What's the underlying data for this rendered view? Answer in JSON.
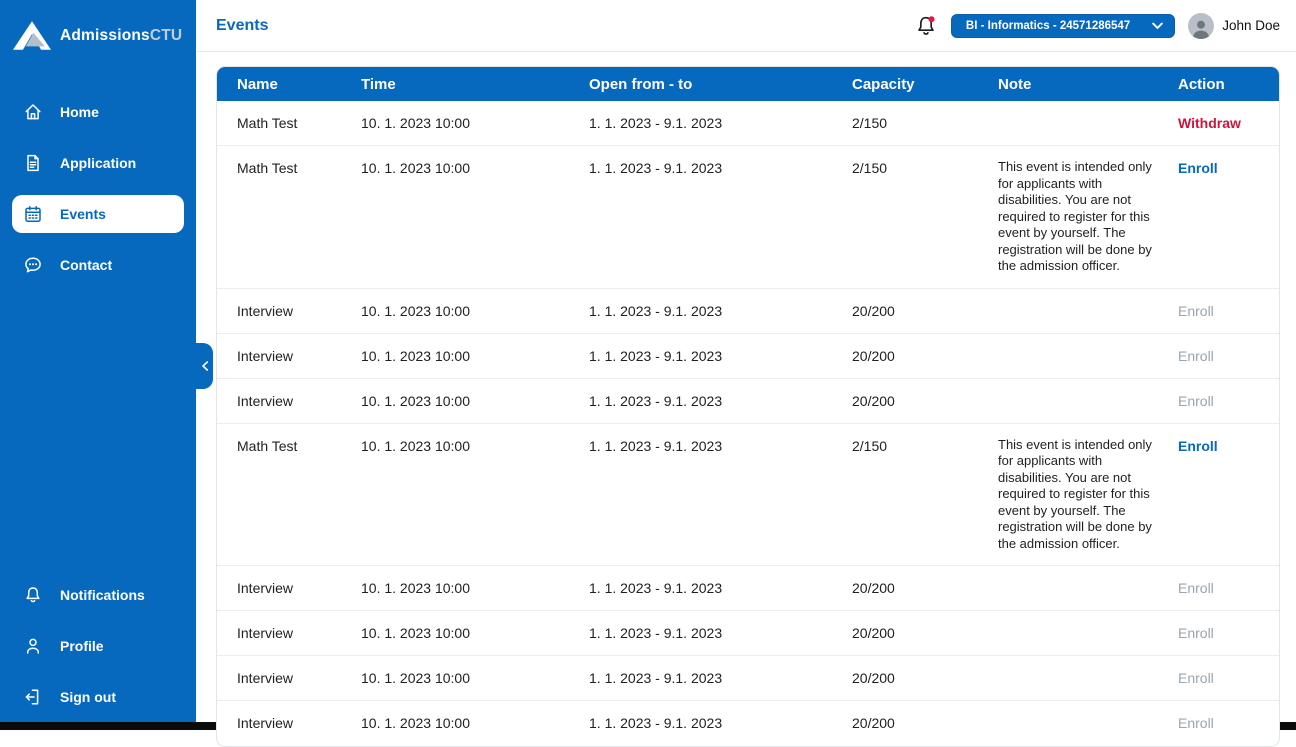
{
  "app": {
    "brand_primary": "Admissions",
    "brand_secondary": "CTU"
  },
  "colors": {
    "primary_blue": "#0769BE",
    "danger_red": "#D2123C",
    "disabled_gray": "#9AA5B1",
    "notification_badge_red": "#E8173F"
  },
  "sidebar": {
    "items": [
      {
        "label": "Home",
        "icon": "home-icon",
        "active": false
      },
      {
        "label": "Application",
        "icon": "application-icon",
        "active": false
      },
      {
        "label": "Events",
        "icon": "calendar-icon",
        "active": true
      },
      {
        "label": "Contact",
        "icon": "chat-icon",
        "active": false
      }
    ],
    "bottom_items": [
      {
        "label": "Notifications",
        "icon": "bell-icon",
        "active": false
      },
      {
        "label": "Profile",
        "icon": "person-icon",
        "active": false
      },
      {
        "label": "Sign out",
        "icon": "sign-out-icon",
        "active": false
      }
    ]
  },
  "header": {
    "title": "Events",
    "program_selector": "BI - Informatics - 24571286547",
    "user_name": "John Doe"
  },
  "table": {
    "columns": [
      "Name",
      "Time",
      "Open from - to",
      "Capacity",
      "Note",
      "Action"
    ],
    "rows": [
      {
        "name": "Math Test",
        "time": "10. 1. 2023 10:00",
        "open": "1. 1. 2023 - 9.1. 2023",
        "capacity": "2/150",
        "note": "",
        "action": {
          "label": "Withdraw",
          "kind": "withdraw",
          "enabled": true
        }
      },
      {
        "name": "Math Test",
        "time": "10. 1. 2023 10:00",
        "open": "1. 1. 2023 - 9.1. 2023",
        "capacity": "2/150",
        "note": "This event is intended only for applicants with disabilities. You are not required to register for this event by yourself. The registration will be done by the admission officer.",
        "action": {
          "label": "Enroll",
          "kind": "enroll",
          "enabled": true
        }
      },
      {
        "name": "Interview",
        "time": "10. 1. 2023 10:00",
        "open": "1. 1. 2023 - 9.1. 2023",
        "capacity": "20/200",
        "note": "",
        "action": {
          "label": "Enroll",
          "kind": "enroll",
          "enabled": false
        }
      },
      {
        "name": "Interview",
        "time": "10. 1. 2023 10:00",
        "open": "1. 1. 2023 - 9.1. 2023",
        "capacity": "20/200",
        "note": "",
        "action": {
          "label": "Enroll",
          "kind": "enroll",
          "enabled": false
        }
      },
      {
        "name": "Interview",
        "time": "10. 1. 2023 10:00",
        "open": "1. 1. 2023 - 9.1. 2023",
        "capacity": "20/200",
        "note": "",
        "action": {
          "label": "Enroll",
          "kind": "enroll",
          "enabled": false
        }
      },
      {
        "name": "Math Test",
        "time": "10. 1. 2023 10:00",
        "open": "1. 1. 2023 - 9.1. 2023",
        "capacity": "2/150",
        "note": "This event is intended only for applicants with disabilities. You are not required to register for this event by yourself. The registration will be done by the admission officer.",
        "action": {
          "label": "Enroll",
          "kind": "enroll",
          "enabled": true
        }
      },
      {
        "name": "Interview",
        "time": "10. 1. 2023 10:00",
        "open": "1. 1. 2023 - 9.1. 2023",
        "capacity": "20/200",
        "note": "",
        "action": {
          "label": "Enroll",
          "kind": "enroll",
          "enabled": false
        }
      },
      {
        "name": "Interview",
        "time": "10. 1. 2023 10:00",
        "open": "1. 1. 2023 - 9.1. 2023",
        "capacity": "20/200",
        "note": "",
        "action": {
          "label": "Enroll",
          "kind": "enroll",
          "enabled": false
        }
      },
      {
        "name": "Interview",
        "time": "10. 1. 2023 10:00",
        "open": "1. 1. 2023 - 9.1. 2023",
        "capacity": "20/200",
        "note": "",
        "action": {
          "label": "Enroll",
          "kind": "enroll",
          "enabled": false
        }
      },
      {
        "name": "Interview",
        "time": "10. 1. 2023 10:00",
        "open": "1. 1. 2023 - 9.1. 2023",
        "capacity": "20/200",
        "note": "",
        "action": {
          "label": "Enroll",
          "kind": "enroll",
          "enabled": false
        }
      }
    ]
  }
}
